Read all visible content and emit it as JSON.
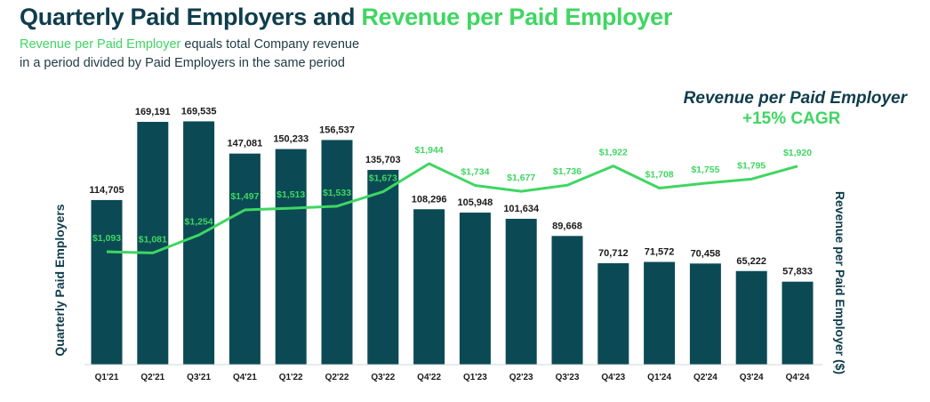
{
  "header": {
    "title_part1": "Quarterly Paid Employers and ",
    "title_part2": "Revenue per Paid Employer",
    "subtitle_highlight": "Revenue per Paid Employer",
    "subtitle_rest": " equals total Company revenue",
    "subtitle_line2": "in a period divided by Paid Employers in the same period"
  },
  "annotation": {
    "label": "Revenue per Paid Employer",
    "cagr": "+15% CAGR"
  },
  "colors": {
    "bar": "#0b4a55",
    "line": "#3fd662",
    "text": "#1a1a1a"
  },
  "chart_data": {
    "type": "bar+line",
    "categories": [
      "Q1'21",
      "Q2'21",
      "Q3'21",
      "Q4'21",
      "Q1'22",
      "Q2'22",
      "Q3'22",
      "Q4'22",
      "Q1'23",
      "Q2'23",
      "Q3'23",
      "Q4'23",
      "Q1'24",
      "Q2'24",
      "Q3'24",
      "Q4'24"
    ],
    "series": [
      {
        "name": "Quarterly Paid Employers",
        "type": "bar",
        "axis": "left",
        "values": [
          114705,
          169191,
          169535,
          147081,
          150233,
          156537,
          135703,
          108296,
          105948,
          101634,
          89668,
          70712,
          71572,
          70458,
          65222,
          57833
        ],
        "labels": [
          "114,705",
          "169,191",
          "169,535",
          "147,081",
          "150,233",
          "156,537",
          "135,703",
          "108,296",
          "105,948",
          "101,634",
          "89,668",
          "70,712",
          "71,572",
          "70,458",
          "65,222",
          "57,833"
        ]
      },
      {
        "name": "Revenue per Paid Employer ($)",
        "type": "line",
        "axis": "right",
        "values": [
          1093,
          1081,
          1254,
          1497,
          1513,
          1533,
          1673,
          1944,
          1734,
          1677,
          1736,
          1922,
          1708,
          1755,
          1795,
          1920
        ],
        "labels": [
          "$1,093",
          "$1,081",
          "$1,254",
          "$1,497",
          "$1,513",
          "$1,533",
          "$1,673",
          "$1,944",
          "$1,734",
          "$1,677",
          "$1,736",
          "$1,922",
          "$1,708",
          "$1,755",
          "$1,795",
          "$1,920"
        ]
      }
    ],
    "ylabel_left": "Quarterly Paid Employers",
    "ylabel_right": "Revenue per Paid Employer ($)"
  }
}
